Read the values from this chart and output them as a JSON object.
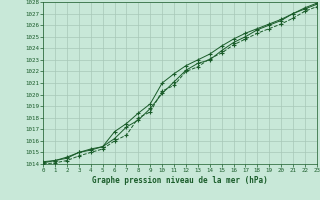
{
  "xlabel": "Graphe pression niveau de la mer (hPa)",
  "bg_color": "#c8e8d8",
  "grid_color": "#a8c8b8",
  "line_color": "#1a5c2a",
  "ylim": [
    1014,
    1028
  ],
  "xlim": [
    0,
    23
  ],
  "ytick_vals": [
    1014,
    1015,
    1016,
    1017,
    1018,
    1019,
    1020,
    1021,
    1022,
    1023,
    1024,
    1025,
    1026,
    1027,
    1028
  ],
  "xtick_vals": [
    0,
    1,
    2,
    3,
    4,
    5,
    6,
    7,
    8,
    9,
    10,
    11,
    12,
    13,
    14,
    15,
    16,
    17,
    18,
    19,
    20,
    21,
    22,
    23
  ],
  "series1_x": [
    0,
    1,
    2,
    3,
    4,
    5,
    6,
    7,
    8,
    9,
    10,
    11,
    12,
    13,
    14,
    15,
    16,
    17,
    18,
    19,
    20,
    21,
    22,
    23
  ],
  "series1_y": [
    1014.1,
    1014.3,
    1014.6,
    1015.0,
    1015.2,
    1015.5,
    1016.2,
    1017.2,
    1017.8,
    1018.8,
    1020.1,
    1021.1,
    1022.1,
    1022.7,
    1023.0,
    1023.8,
    1024.5,
    1025.0,
    1025.6,
    1026.0,
    1026.4,
    1027.0,
    1027.4,
    1027.8
  ],
  "series2_x": [
    0,
    1,
    2,
    3,
    4,
    5,
    6,
    7,
    8,
    9,
    10,
    11,
    12,
    13,
    14,
    15,
    16,
    17,
    18,
    19,
    20,
    21,
    22,
    23
  ],
  "series2_y": [
    1014.2,
    1014.3,
    1014.5,
    1015.0,
    1015.3,
    1015.5,
    1016.8,
    1017.5,
    1018.4,
    1019.2,
    1021.0,
    1021.8,
    1022.5,
    1023.0,
    1023.5,
    1024.2,
    1024.8,
    1025.3,
    1025.7,
    1026.1,
    1026.5,
    1027.0,
    1027.5,
    1027.9
  ],
  "series3_x": [
    0,
    1,
    2,
    3,
    4,
    5,
    6,
    7,
    8,
    9,
    10,
    11,
    12,
    13,
    14,
    15,
    16,
    17,
    18,
    19,
    20,
    21,
    22,
    23
  ],
  "series3_y": [
    1014.0,
    1014.1,
    1014.3,
    1014.7,
    1015.0,
    1015.3,
    1016.0,
    1016.5,
    1018.0,
    1018.5,
    1020.3,
    1020.8,
    1022.0,
    1022.4,
    1023.1,
    1023.6,
    1024.3,
    1024.8,
    1025.3,
    1025.7,
    1026.1,
    1026.6,
    1027.2,
    1027.6
  ]
}
